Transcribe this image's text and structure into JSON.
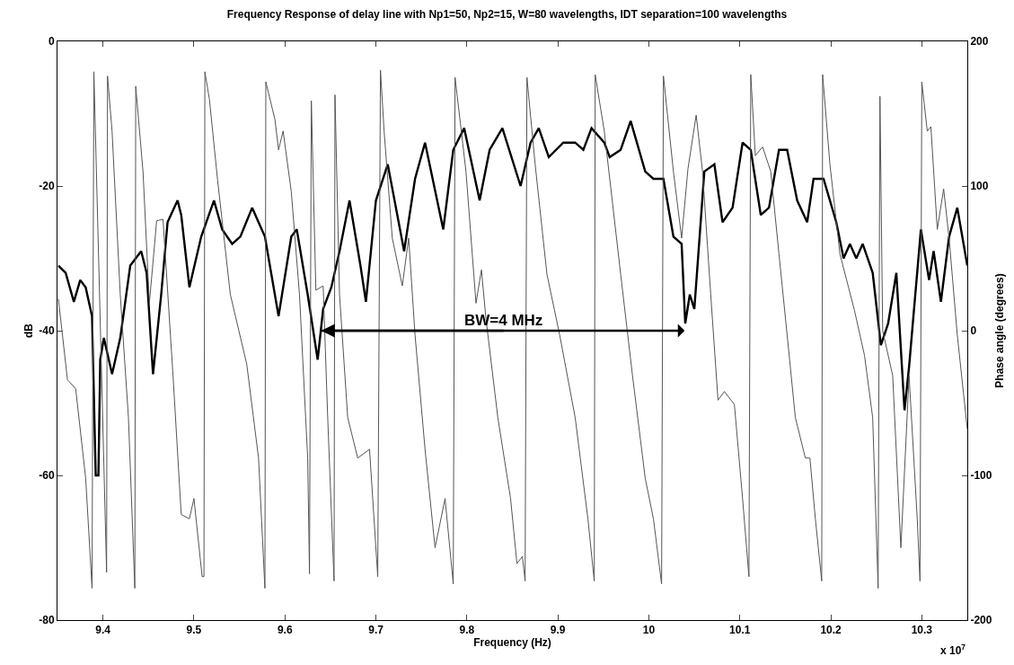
{
  "chart_data": {
    "type": "line",
    "title": "Frequency Response of delay line with Np1=50, Np2=15, W=80 wavelengths, IDT separation=100 wavelengths",
    "xlabel": "Frequency (Hz)",
    "ylabel": "dB",
    "y2label": "Phase angle (degrees)",
    "xlim": [
      9.35,
      10.35
    ],
    "xticks": [
      9.4,
      9.5,
      9.6,
      9.7,
      9.8,
      9.9,
      10,
      10.1,
      10.2,
      10.3
    ],
    "ylim": [
      -80,
      0
    ],
    "yticks": [
      -80,
      -60,
      -40,
      -20,
      0
    ],
    "y2lim": [
      -200,
      200
    ],
    "y2ticks": [
      -200,
      -100,
      0,
      100,
      200
    ],
    "marker": "none",
    "line_style": "solid",
    "series": [
      {
        "color": "#000000",
        "x": [
          9.351,
          9.359,
          9.368,
          9.375,
          9.381,
          9.388,
          9.392,
          9.395,
          9.397,
          9.401,
          9.41,
          9.419,
          9.43,
          9.442,
          9.448,
          9.455,
          9.464,
          9.471,
          9.482,
          9.486,
          9.495,
          9.508,
          9.522,
          9.531,
          9.542,
          9.551,
          9.564,
          9.578,
          9.593,
          9.607,
          9.613,
          9.625,
          9.636,
          9.642,
          9.651,
          9.66,
          9.671,
          9.683,
          9.689,
          9.7,
          9.713,
          9.731,
          9.743,
          9.754,
          9.774,
          9.785,
          9.797,
          9.814,
          9.825,
          9.839,
          9.859,
          9.87,
          9.879,
          9.89,
          9.906,
          9.919,
          9.928,
          9.937,
          9.951,
          9.957,
          9.969,
          9.98,
          9.996,
          10.005,
          10.016,
          10.027,
          10.036,
          10.04,
          10.045,
          10.05,
          10.061,
          10.072,
          10.081,
          10.092,
          10.103,
          10.112,
          10.123,
          10.132,
          10.143,
          10.152,
          10.163,
          10.174,
          10.181,
          10.192,
          10.206,
          10.214,
          10.221,
          10.228,
          10.235,
          10.246,
          10.255,
          10.263,
          10.272,
          10.281,
          10.286,
          10.299,
          10.308,
          10.313,
          10.321,
          10.33,
          10.339,
          10.35
        ],
        "values": [
          -31,
          -32,
          -36,
          -33,
          -34,
          -38,
          -60,
          -60,
          -44,
          -41,
          -46,
          -41,
          -31,
          -29,
          -32,
          -46,
          -35,
          -25,
          -22,
          -24,
          -34,
          -27,
          -22,
          -26,
          -28,
          -27,
          -23,
          -27,
          -38,
          -27,
          -26,
          -35,
          -44,
          -37,
          -34,
          -29,
          -22,
          -31,
          -36,
          -22,
          -17,
          -29,
          -19,
          -14,
          -26,
          -15,
          -12,
          -22,
          -15,
          -12,
          -20,
          -14,
          -12,
          -16,
          -14,
          -14,
          -15,
          -12,
          -14,
          -16,
          -15,
          -11,
          -18,
          -19,
          -19,
          -27,
          -28,
          -39,
          -35,
          -37,
          -18,
          -17,
          -25,
          -23,
          -14,
          -15,
          -24,
          -23,
          -15,
          -15,
          -22,
          -25,
          -19,
          -19,
          -25,
          -30,
          -28,
          -30,
          -28,
          -32,
          -42,
          -39,
          -32,
          -51,
          -45,
          -26,
          -33,
          -29,
          -36,
          -27,
          -23,
          -31
        ]
      },
      {
        "color": "#555555",
        "axis": "y2",
        "x": [
          9.351,
          9.361,
          9.37,
          9.381,
          9.388,
          9.39,
          9.404,
          9.405,
          9.41,
          9.419,
          9.428,
          9.435,
          9.436,
          9.444,
          9.451,
          9.459,
          9.466,
          9.477,
          9.486,
          9.495,
          9.5,
          9.509,
          9.511,
          9.512,
          9.517,
          9.526,
          9.54,
          9.558,
          9.571,
          9.578,
          9.579,
          9.589,
          9.593,
          9.598,
          9.607,
          9.616,
          9.625,
          9.627,
          9.629,
          9.634,
          9.642,
          9.647,
          9.654,
          9.655,
          9.66,
          9.669,
          9.68,
          9.693,
          9.702,
          9.705,
          9.709,
          9.718,
          9.729,
          9.736,
          9.743,
          9.754,
          9.765,
          9.776,
          9.785,
          9.787,
          9.799,
          9.81,
          9.816,
          9.821,
          9.834,
          9.848,
          9.855,
          9.861,
          9.864,
          9.866,
          9.875,
          9.888,
          9.902,
          9.919,
          9.933,
          9.94,
          9.941,
          9.951,
          9.969,
          9.982,
          9.996,
          10.005,
          10.014,
          10.016,
          10.027,
          10.036,
          10.043,
          10.052,
          10.059,
          10.068,
          10.076,
          10.083,
          10.094,
          10.103,
          10.11,
          10.112,
          10.117,
          10.125,
          10.134,
          10.143,
          10.152,
          10.161,
          10.172,
          10.177,
          10.183,
          10.19,
          10.191,
          10.199,
          10.21,
          10.226,
          10.237,
          10.246,
          10.252,
          10.254,
          10.257,
          10.268,
          10.277,
          10.286,
          10.295,
          10.298,
          10.3,
          10.306,
          10.31,
          10.317,
          10.324,
          10.33,
          10.339,
          10.35
        ],
        "values": [
          22,
          -34,
          -40,
          -102,
          -178,
          179,
          -167,
          176,
          138,
          25,
          -60,
          -178,
          169,
          110,
          19,
          76,
          77,
          -31,
          -127,
          -130,
          -116,
          -170,
          -170,
          179,
          160,
          104,
          25,
          -23,
          -88,
          -178,
          172,
          146,
          125,
          138,
          96,
          25,
          -88,
          -168,
          159,
          28,
          31,
          -60,
          -173,
          163,
          25,
          -60,
          -88,
          -82,
          -170,
          180,
          138,
          64,
          31,
          64,
          -3,
          -82,
          -150,
          -116,
          -175,
          175,
          110,
          19,
          42,
          8,
          -60,
          -116,
          -161,
          -156,
          -173,
          175,
          115,
          39,
          -3,
          -60,
          -130,
          -173,
          177,
          138,
          39,
          -31,
          -102,
          -130,
          -175,
          176,
          110,
          64,
          112,
          149,
          110,
          25,
          -48,
          -42,
          -51,
          -116,
          -170,
          177,
          121,
          127,
          110,
          53,
          -3,
          -60,
          -88,
          -88,
          -130,
          -173,
          177,
          115,
          53,
          14,
          -17,
          -60,
          -178,
          162,
          0,
          -31,
          -150,
          -31,
          -130,
          -173,
          172,
          138,
          141,
          70,
          98,
          64,
          -3,
          -68
        ]
      }
    ],
    "annotations": [
      {
        "text": "BW=4 MHz",
        "x": 9.64,
        "y": -40
      },
      "x 10$^{7}$"
    ]
  }
}
